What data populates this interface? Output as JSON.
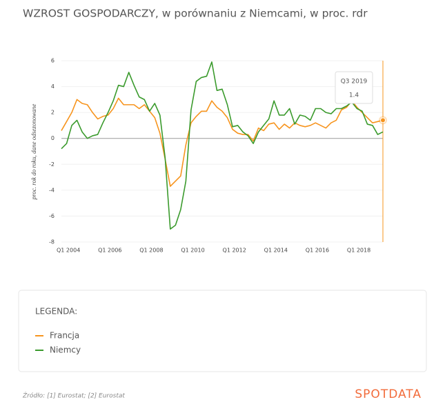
{
  "chart_data": {
    "type": "line",
    "title": "WZROST GOSPODARCZY, w porównaniu z Niemcami, w proc. rdr",
    "y_label": "proc. rok do roku, dane odsezonowane",
    "categories": [
      "Q1 2004",
      null,
      null,
      null,
      null,
      null,
      null,
      null,
      "Q1 2006",
      null,
      null,
      null,
      null,
      null,
      null,
      null,
      "Q1 2008",
      null,
      null,
      null,
      null,
      null,
      null,
      null,
      "Q1 2010",
      null,
      null,
      null,
      null,
      null,
      null,
      null,
      "Q1 2012",
      null,
      null,
      null,
      null,
      null,
      null,
      null,
      "Q1 2014",
      null,
      null,
      null,
      null,
      null,
      null,
      null,
      "Q1 2016",
      null,
      null,
      null,
      null,
      null,
      null,
      null,
      "Q1 2018",
      null,
      null,
      null,
      null,
      null,
      null
    ],
    "series": [
      {
        "name": "Francja",
        "color": "#f7941d",
        "values": [
          0.6,
          1.3,
          2.0,
          3.0,
          2.7,
          2.6,
          2.0,
          1.5,
          1.7,
          1.8,
          2.3,
          3.1,
          2.6,
          2.6,
          2.6,
          2.3,
          2.6,
          2.1,
          1.6,
          0.4,
          -1.6,
          -3.7,
          -3.3,
          -2.9,
          -0.5,
          1.2,
          1.7,
          2.1,
          2.1,
          2.9,
          2.4,
          2.1,
          1.6,
          0.7,
          0.4,
          0.3,
          0.3,
          -0.2,
          0.8,
          0.6,
          1.1,
          1.2,
          0.7,
          1.1,
          0.8,
          1.2,
          1.0,
          0.9,
          1.0,
          1.2,
          1.0,
          0.8,
          1.2,
          1.4,
          2.2,
          2.4,
          2.9,
          2.4,
          2.0,
          1.6,
          1.2,
          1.3,
          1.4
        ]
      },
      {
        "name": "Niemcy",
        "color": "#3a9a2c",
        "values": [
          -0.8,
          -0.4,
          1.0,
          1.4,
          0.5,
          0.0,
          0.2,
          0.3,
          1.2,
          2.0,
          2.9,
          4.1,
          4.0,
          5.1,
          4.1,
          3.2,
          3.0,
          2.1,
          2.7,
          1.8,
          -1.5,
          -7.0,
          -6.7,
          -5.5,
          -3.3,
          2.2,
          4.4,
          4.7,
          4.8,
          5.9,
          3.7,
          3.8,
          2.6,
          0.9,
          1.0,
          0.5,
          0.2,
          -0.4,
          0.5,
          1.0,
          1.5,
          2.9,
          1.8,
          1.8,
          2.3,
          1.1,
          1.8,
          1.7,
          1.4,
          2.3,
          2.3,
          2.0,
          1.9,
          2.3,
          2.3,
          2.5,
          2.8,
          2.3,
          2.1,
          1.1,
          1.0,
          0.3,
          0.5
        ]
      }
    ],
    "ylim": [
      -8,
      6
    ],
    "yticks": [
      -8,
      -6,
      -4,
      -2,
      0,
      2,
      4,
      6
    ],
    "grid": true,
    "tooltip": {
      "label": "Q3 2019",
      "value": 1.4
    },
    "legend_title": "LEGENDA:",
    "source": "Źródło: [1] Eurostat; [2] Eurostat",
    "logo": "SPOTDATA"
  }
}
